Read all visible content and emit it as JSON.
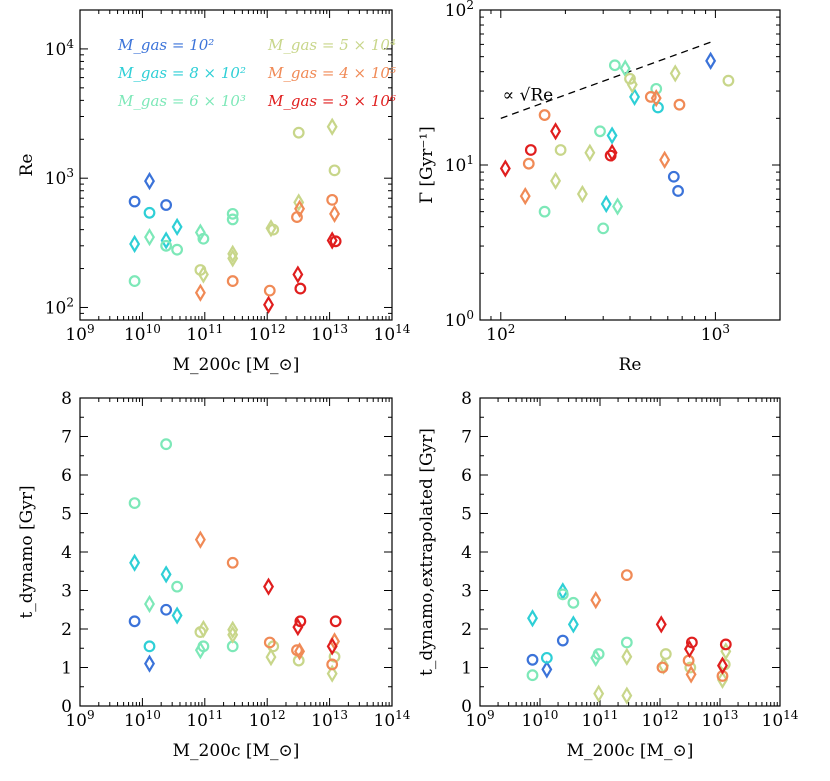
{
  "legend": [
    {
      "label": "M_gas = 10²",
      "color": "#3b73d9"
    },
    {
      "label": "M_gas = 8 × 10²",
      "color": "#2ecfd6"
    },
    {
      "label": "M_gas = 6 × 10³",
      "color": "#7de8b8"
    },
    {
      "label": "M_gas = 5 × 10⁴",
      "color": "#c8d68a"
    },
    {
      "label": "M_gas = 4 × 10⁵",
      "color": "#f08a56"
    },
    {
      "label": "M_gas = 3 × 10⁶",
      "color": "#e01e1e"
    }
  ],
  "series_colors": [
    "#3b73d9",
    "#2ecfd6",
    "#7de8b8",
    "#c8d68a",
    "#f08a56",
    "#e01e1e"
  ],
  "annotation": "∝ √Re",
  "chart_data": [
    {
      "id": "re-vs-mass",
      "type": "scatter",
      "xlabel": "M_200c [M_⊙]",
      "ylabel": "Re",
      "xscale": "log",
      "yscale": "log",
      "xlim": [
        1000000000.0,
        100000000000000.0
      ],
      "ylim": [
        80,
        20000
      ],
      "xticks": [
        "10^9",
        "10^10",
        "10^11",
        "10^12",
        "10^13",
        "10^14"
      ],
      "yticks": [
        "10^2",
        "10^3",
        "10^4"
      ],
      "points": [
        {
          "x": 7500000000.0,
          "y": 660,
          "s": 0,
          "m": "circle"
        },
        {
          "x": 13000000000.0,
          "y": 950,
          "s": 0,
          "m": "diamond"
        },
        {
          "x": 24000000000.0,
          "y": 620,
          "s": 0,
          "m": "circle"
        },
        {
          "x": 7500000000.0,
          "y": 310,
          "s": 1,
          "m": "diamond"
        },
        {
          "x": 13000000000.0,
          "y": 540,
          "s": 1,
          "m": "circle"
        },
        {
          "x": 24000000000.0,
          "y": 330,
          "s": 1,
          "m": "diamond"
        },
        {
          "x": 36000000000.0,
          "y": 420,
          "s": 1,
          "m": "diamond"
        },
        {
          "x": 7500000000.0,
          "y": 160,
          "s": 2,
          "m": "circle"
        },
        {
          "x": 13000000000.0,
          "y": 350,
          "s": 2,
          "m": "diamond"
        },
        {
          "x": 24000000000.0,
          "y": 300,
          "s": 2,
          "m": "circle"
        },
        {
          "x": 36000000000.0,
          "y": 280,
          "s": 2,
          "m": "circle"
        },
        {
          "x": 85000000000.0,
          "y": 380,
          "s": 2,
          "m": "diamond"
        },
        {
          "x": 95000000000.0,
          "y": 340,
          "s": 2,
          "m": "circle"
        },
        {
          "x": 280000000000.0,
          "y": 530,
          "s": 2,
          "m": "circle"
        },
        {
          "x": 280000000000.0,
          "y": 480,
          "s": 2,
          "m": "circle"
        },
        {
          "x": 85000000000.0,
          "y": 195,
          "s": 3,
          "m": "circle"
        },
        {
          "x": 95000000000.0,
          "y": 180,
          "s": 3,
          "m": "diamond"
        },
        {
          "x": 280000000000.0,
          "y": 260,
          "s": 3,
          "m": "diamond"
        },
        {
          "x": 280000000000.0,
          "y": 240,
          "s": 3,
          "m": "diamond"
        },
        {
          "x": 1150000000000.0,
          "y": 410,
          "s": 3,
          "m": "diamond"
        },
        {
          "x": 1250000000000.0,
          "y": 400,
          "s": 3,
          "m": "circle"
        },
        {
          "x": 3200000000000.0,
          "y": 650,
          "s": 3,
          "m": "diamond"
        },
        {
          "x": 3200000000000.0,
          "y": 2250,
          "s": 3,
          "m": "circle"
        },
        {
          "x": 11000000000000.0,
          "y": 2500,
          "s": 3,
          "m": "diamond"
        },
        {
          "x": 12000000000000.0,
          "y": 1150,
          "s": 3,
          "m": "circle"
        },
        {
          "x": 85000000000.0,
          "y": 130,
          "s": 4,
          "m": "diamond"
        },
        {
          "x": 280000000000.0,
          "y": 160,
          "s": 4,
          "m": "circle"
        },
        {
          "x": 1100000000000.0,
          "y": 135,
          "s": 4,
          "m": "circle"
        },
        {
          "x": 3000000000000.0,
          "y": 500,
          "s": 4,
          "m": "circle"
        },
        {
          "x": 3300000000000.0,
          "y": 580,
          "s": 4,
          "m": "diamond"
        },
        {
          "x": 11000000000000.0,
          "y": 680,
          "s": 4,
          "m": "circle"
        },
        {
          "x": 12000000000000.0,
          "y": 530,
          "s": 4,
          "m": "diamond"
        },
        {
          "x": 1050000000000.0,
          "y": 105,
          "s": 5,
          "m": "diamond"
        },
        {
          "x": 3100000000000.0,
          "y": 180,
          "s": 5,
          "m": "diamond"
        },
        {
          "x": 3400000000000.0,
          "y": 140,
          "s": 5,
          "m": "circle"
        },
        {
          "x": 11000000000000.0,
          "y": 330,
          "s": 5,
          "m": "diamond"
        },
        {
          "x": 12500000000000.0,
          "y": 325,
          "s": 5,
          "m": "circle"
        }
      ]
    },
    {
      "id": "gamma-vs-re",
      "type": "scatter",
      "xlabel": "Re",
      "ylabel": "Γ [Gyr⁻¹]",
      "xscale": "log",
      "yscale": "log",
      "xlim": [
        80,
        2000
      ],
      "ylim": [
        1,
        100
      ],
      "xticks": [
        "10^2",
        "10^3"
      ],
      "yticks": [
        "10^0",
        "10^1",
        "10^2"
      ],
      "reference_line": {
        "label": "∝ √Re",
        "x": [
          100,
          950
        ],
        "y": [
          20,
          62
        ]
      },
      "points": [
        {
          "x": 950,
          "y": 47,
          "s": 0,
          "m": "diamond"
        },
        {
          "x": 640,
          "y": 8.4,
          "s": 0,
          "m": "circle"
        },
        {
          "x": 670,
          "y": 6.8,
          "s": 0,
          "m": "circle"
        },
        {
          "x": 330,
          "y": 15.5,
          "s": 1,
          "m": "diamond"
        },
        {
          "x": 310,
          "y": 5.6,
          "s": 1,
          "m": "diamond"
        },
        {
          "x": 420,
          "y": 27.5,
          "s": 1,
          "m": "diamond"
        },
        {
          "x": 540,
          "y": 23.5,
          "s": 1,
          "m": "circle"
        },
        {
          "x": 160,
          "y": 5.0,
          "s": 2,
          "m": "circle"
        },
        {
          "x": 290,
          "y": 16.5,
          "s": 2,
          "m": "circle"
        },
        {
          "x": 300,
          "y": 3.9,
          "s": 2,
          "m": "circle"
        },
        {
          "x": 340,
          "y": 44,
          "s": 2,
          "m": "circle"
        },
        {
          "x": 350,
          "y": 5.4,
          "s": 2,
          "m": "diamond"
        },
        {
          "x": 380,
          "y": 42,
          "s": 2,
          "m": "diamond"
        },
        {
          "x": 530,
          "y": 31,
          "s": 2,
          "m": "circle"
        },
        {
          "x": 180,
          "y": 7.9,
          "s": 3,
          "m": "diamond"
        },
        {
          "x": 190,
          "y": 12.5,
          "s": 3,
          "m": "circle"
        },
        {
          "x": 240,
          "y": 6.5,
          "s": 3,
          "m": "diamond"
        },
        {
          "x": 260,
          "y": 12.0,
          "s": 3,
          "m": "diamond"
        },
        {
          "x": 400,
          "y": 36,
          "s": 3,
          "m": "circle"
        },
        {
          "x": 410,
          "y": 33,
          "s": 3,
          "m": "diamond"
        },
        {
          "x": 650,
          "y": 39,
          "s": 3,
          "m": "diamond"
        },
        {
          "x": 1150,
          "y": 35,
          "s": 3,
          "m": "circle"
        },
        {
          "x": 130,
          "y": 6.3,
          "s": 4,
          "m": "diamond"
        },
        {
          "x": 135,
          "y": 10.2,
          "s": 4,
          "m": "circle"
        },
        {
          "x": 160,
          "y": 21,
          "s": 4,
          "m": "circle"
        },
        {
          "x": 500,
          "y": 27.5,
          "s": 4,
          "m": "circle"
        },
        {
          "x": 530,
          "y": 27,
          "s": 4,
          "m": "diamond"
        },
        {
          "x": 580,
          "y": 10.8,
          "s": 4,
          "m": "diamond"
        },
        {
          "x": 680,
          "y": 24.5,
          "s": 4,
          "m": "circle"
        },
        {
          "x": 105,
          "y": 9.5,
          "s": 5,
          "m": "diamond"
        },
        {
          "x": 138,
          "y": 12.5,
          "s": 5,
          "m": "circle"
        },
        {
          "x": 180,
          "y": 16.5,
          "s": 5,
          "m": "diamond"
        },
        {
          "x": 325,
          "y": 11.5,
          "s": 5,
          "m": "circle"
        },
        {
          "x": 330,
          "y": 12,
          "s": 5,
          "m": "diamond"
        }
      ]
    },
    {
      "id": "tdynamo-vs-mass",
      "type": "scatter",
      "xlabel": "M_200c [M_⊙]",
      "ylabel": "t_dynamo [Gyr]",
      "xscale": "log",
      "yscale": "linear",
      "xlim": [
        1000000000.0,
        100000000000000.0
      ],
      "ylim": [
        0,
        8
      ],
      "xticks": [
        "10^9",
        "10^10",
        "10^11",
        "10^12",
        "10^13",
        "10^14"
      ],
      "yticks": [
        "0",
        "1",
        "2",
        "3",
        "4",
        "5",
        "6",
        "7",
        "8"
      ],
      "points": [
        {
          "x": 7500000000.0,
          "y": 2.2,
          "s": 0,
          "m": "circle"
        },
        {
          "x": 13000000000.0,
          "y": 1.1,
          "s": 0,
          "m": "diamond"
        },
        {
          "x": 24000000000.0,
          "y": 2.5,
          "s": 0,
          "m": "circle"
        },
        {
          "x": 7500000000.0,
          "y": 3.72,
          "s": 1,
          "m": "diamond"
        },
        {
          "x": 13000000000.0,
          "y": 1.55,
          "s": 1,
          "m": "circle"
        },
        {
          "x": 24000000000.0,
          "y": 3.42,
          "s": 1,
          "m": "diamond"
        },
        {
          "x": 36000000000.0,
          "y": 2.35,
          "s": 1,
          "m": "diamond"
        },
        {
          "x": 7500000000.0,
          "y": 5.27,
          "s": 2,
          "m": "circle"
        },
        {
          "x": 13000000000.0,
          "y": 2.65,
          "s": 2,
          "m": "diamond"
        },
        {
          "x": 24000000000.0,
          "y": 6.8,
          "s": 2,
          "m": "circle"
        },
        {
          "x": 36000000000.0,
          "y": 3.1,
          "s": 2,
          "m": "circle"
        },
        {
          "x": 85000000000.0,
          "y": 1.45,
          "s": 2,
          "m": "diamond"
        },
        {
          "x": 95000000000.0,
          "y": 1.55,
          "s": 2,
          "m": "circle"
        },
        {
          "x": 280000000000.0,
          "y": 1.55,
          "s": 2,
          "m": "circle"
        },
        {
          "x": 85000000000.0,
          "y": 1.92,
          "s": 3,
          "m": "circle"
        },
        {
          "x": 95000000000.0,
          "y": 2.0,
          "s": 3,
          "m": "diamond"
        },
        {
          "x": 280000000000.0,
          "y": 1.85,
          "s": 3,
          "m": "diamond"
        },
        {
          "x": 280000000000.0,
          "y": 1.98,
          "s": 3,
          "m": "diamond"
        },
        {
          "x": 1150000000000.0,
          "y": 1.27,
          "s": 3,
          "m": "diamond"
        },
        {
          "x": 1250000000000.0,
          "y": 1.55,
          "s": 3,
          "m": "circle"
        },
        {
          "x": 3200000000000.0,
          "y": 1.18,
          "s": 3,
          "m": "circle"
        },
        {
          "x": 11000000000000.0,
          "y": 0.84,
          "s": 3,
          "m": "diamond"
        },
        {
          "x": 12000000000000.0,
          "y": 1.28,
          "s": 3,
          "m": "circle"
        },
        {
          "x": 85000000000.0,
          "y": 4.32,
          "s": 4,
          "m": "diamond"
        },
        {
          "x": 280000000000.0,
          "y": 3.72,
          "s": 4,
          "m": "circle"
        },
        {
          "x": 1100000000000.0,
          "y": 1.65,
          "s": 4,
          "m": "circle"
        },
        {
          "x": 3000000000000.0,
          "y": 1.45,
          "s": 4,
          "m": "circle"
        },
        {
          "x": 3300000000000.0,
          "y": 1.42,
          "s": 4,
          "m": "diamond"
        },
        {
          "x": 11000000000000.0,
          "y": 1.08,
          "s": 4,
          "m": "circle"
        },
        {
          "x": 12000000000000.0,
          "y": 1.68,
          "s": 4,
          "m": "diamond"
        },
        {
          "x": 1050000000000.0,
          "y": 3.1,
          "s": 5,
          "m": "diamond"
        },
        {
          "x": 3100000000000.0,
          "y": 2.05,
          "s": 5,
          "m": "diamond"
        },
        {
          "x": 3400000000000.0,
          "y": 2.2,
          "s": 5,
          "m": "circle"
        },
        {
          "x": 11000000000000.0,
          "y": 1.55,
          "s": 5,
          "m": "diamond"
        },
        {
          "x": 12500000000000.0,
          "y": 2.2,
          "s": 5,
          "m": "circle"
        }
      ]
    },
    {
      "id": "tdynamo-extrap-vs-mass",
      "type": "scatter",
      "xlabel": "M_200c [M_⊙]",
      "ylabel": "t_dynamo,extrapolated [Gyr]",
      "xscale": "log",
      "yscale": "linear",
      "xlim": [
        1000000000.0,
        100000000000000.0
      ],
      "ylim": [
        0,
        8
      ],
      "xticks": [
        "10^9",
        "10^10",
        "10^11",
        "10^12",
        "10^13",
        "10^14"
      ],
      "yticks": [
        "0",
        "1",
        "2",
        "3",
        "4",
        "5",
        "6",
        "7",
        "8"
      ],
      "points": [
        {
          "x": 7500000000.0,
          "y": 1.2,
          "s": 0,
          "m": "circle"
        },
        {
          "x": 13000000000.0,
          "y": 0.95,
          "s": 0,
          "m": "diamond"
        },
        {
          "x": 24000000000.0,
          "y": 1.7,
          "s": 0,
          "m": "circle"
        },
        {
          "x": 7500000000.0,
          "y": 2.28,
          "s": 1,
          "m": "diamond"
        },
        {
          "x": 13000000000.0,
          "y": 1.25,
          "s": 1,
          "m": "circle"
        },
        {
          "x": 24000000000.0,
          "y": 2.98,
          "s": 1,
          "m": "diamond"
        },
        {
          "x": 36000000000.0,
          "y": 2.12,
          "s": 1,
          "m": "diamond"
        },
        {
          "x": 7500000000.0,
          "y": 0.8,
          "s": 2,
          "m": "circle"
        },
        {
          "x": 24000000000.0,
          "y": 2.9,
          "s": 2,
          "m": "circle"
        },
        {
          "x": 36000000000.0,
          "y": 2.68,
          "s": 2,
          "m": "circle"
        },
        {
          "x": 85000000000.0,
          "y": 1.25,
          "s": 2,
          "m": "diamond"
        },
        {
          "x": 95000000000.0,
          "y": 1.35,
          "s": 2,
          "m": "circle"
        },
        {
          "x": 280000000000.0,
          "y": 1.65,
          "s": 2,
          "m": "circle"
        },
        {
          "x": 95000000000.0,
          "y": 0.32,
          "s": 3,
          "m": "diamond"
        },
        {
          "x": 280000000000.0,
          "y": 0.27,
          "s": 3,
          "m": "diamond"
        },
        {
          "x": 280000000000.0,
          "y": 1.28,
          "s": 3,
          "m": "diamond"
        },
        {
          "x": 1150000000000.0,
          "y": 1.05,
          "s": 3,
          "m": "diamond"
        },
        {
          "x": 1250000000000.0,
          "y": 1.35,
          "s": 3,
          "m": "circle"
        },
        {
          "x": 3200000000000.0,
          "y": 1.0,
          "s": 3,
          "m": "circle"
        },
        {
          "x": 11000000000000.0,
          "y": 0.68,
          "s": 3,
          "m": "diamond"
        },
        {
          "x": 12000000000000.0,
          "y": 1.08,
          "s": 3,
          "m": "circle"
        },
        {
          "x": 12500000000000.0,
          "y": 1.42,
          "s": 3,
          "m": "diamond"
        },
        {
          "x": 85000000000.0,
          "y": 2.75,
          "s": 4,
          "m": "diamond"
        },
        {
          "x": 280000000000.0,
          "y": 3.4,
          "s": 4,
          "m": "circle"
        },
        {
          "x": 1100000000000.0,
          "y": 1.0,
          "s": 4,
          "m": "circle"
        },
        {
          "x": 3000000000000.0,
          "y": 1.18,
          "s": 4,
          "m": "circle"
        },
        {
          "x": 3300000000000.0,
          "y": 0.82,
          "s": 4,
          "m": "diamond"
        },
        {
          "x": 11000000000000.0,
          "y": 0.78,
          "s": 4,
          "m": "circle"
        },
        {
          "x": 1050000000000.0,
          "y": 2.12,
          "s": 5,
          "m": "diamond"
        },
        {
          "x": 3100000000000.0,
          "y": 1.48,
          "s": 5,
          "m": "diamond"
        },
        {
          "x": 3400000000000.0,
          "y": 1.65,
          "s": 5,
          "m": "circle"
        },
        {
          "x": 11000000000000.0,
          "y": 1.05,
          "s": 5,
          "m": "diamond"
        },
        {
          "x": 12500000000000.0,
          "y": 1.6,
          "s": 5,
          "m": "circle"
        }
      ]
    }
  ]
}
